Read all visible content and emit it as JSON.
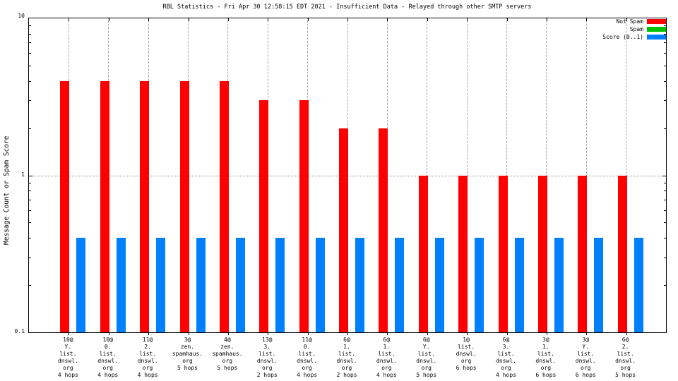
{
  "chart_data": {
    "type": "bar",
    "title": "RBL Statistics - Fri Apr 30 12:58:15 EDT 2021 - Insufficient Data - Relayed through other SMTP servers",
    "ylabel": "Message Count or Spam Score",
    "yscale": "log",
    "ylim": [
      0.1,
      10
    ],
    "ytick_labels": [
      "10",
      "1",
      "0.1"
    ],
    "grid": true,
    "legend_position": "top-right-inside",
    "categories": [
      [
        "10@",
        "Y.",
        "list.",
        "dnswl.",
        "org",
        "4 hops"
      ],
      [
        "10@",
        "0.",
        "list.",
        "dnswl.",
        "org",
        "4 hops"
      ],
      [
        "11@",
        "2.",
        "list.",
        "dnswl.",
        "org",
        "4 hops"
      ],
      [
        "3@",
        "zen.",
        "spamhaus.",
        "org",
        "5 hops"
      ],
      [
        "4@",
        "zen.",
        "spamhaus.",
        "org",
        "5 hops"
      ],
      [
        "13@",
        "3.",
        "list.",
        "dnswl.",
        "org",
        "2 hops"
      ],
      [
        "11@",
        "0.",
        "list.",
        "dnswl.",
        "org",
        "4 hops"
      ],
      [
        "6@",
        "1.",
        "list.",
        "dnswl.",
        "org",
        "2 hops"
      ],
      [
        "6@",
        "1.",
        "list.",
        "dnswl.",
        "org",
        "4 hops"
      ],
      [
        "6@",
        "Y.",
        "list.",
        "dnswl.",
        "org",
        "5 hops"
      ],
      [
        "1@",
        "list.",
        "dnswl.",
        "org",
        "6 hops"
      ],
      [
        "6@",
        "3.",
        "list.",
        "dnswl.",
        "org",
        "4 hops"
      ],
      [
        "3@",
        "1.",
        "list.",
        "dnswl.",
        "org",
        "6 hops"
      ],
      [
        "3@",
        "Y.",
        "list.",
        "dnswl.",
        "org",
        "6 hops"
      ],
      [
        "6@",
        "2.",
        "list.",
        "dnswl.",
        "org",
        "5 hops"
      ]
    ],
    "series": [
      {
        "name": "Not Spam",
        "color": "#ff0000",
        "values": [
          4,
          4,
          4,
          4,
          4,
          3,
          3,
          2,
          2,
          1,
          1,
          1,
          1,
          1,
          1
        ]
      },
      {
        "name": "Spam",
        "color": "#00c000",
        "values": [
          0,
          0,
          0,
          0,
          0,
          0,
          0,
          0,
          0,
          0,
          0,
          0,
          0,
          0,
          0
        ]
      },
      {
        "name": "Score (0..1)",
        "color": "#0080ff",
        "values": [
          0.4,
          0.4,
          0.4,
          0.4,
          0.4,
          0.4,
          0.4,
          0.4,
          0.4,
          0.4,
          0.4,
          0.4,
          0.4,
          0.4,
          0.4
        ]
      }
    ]
  }
}
